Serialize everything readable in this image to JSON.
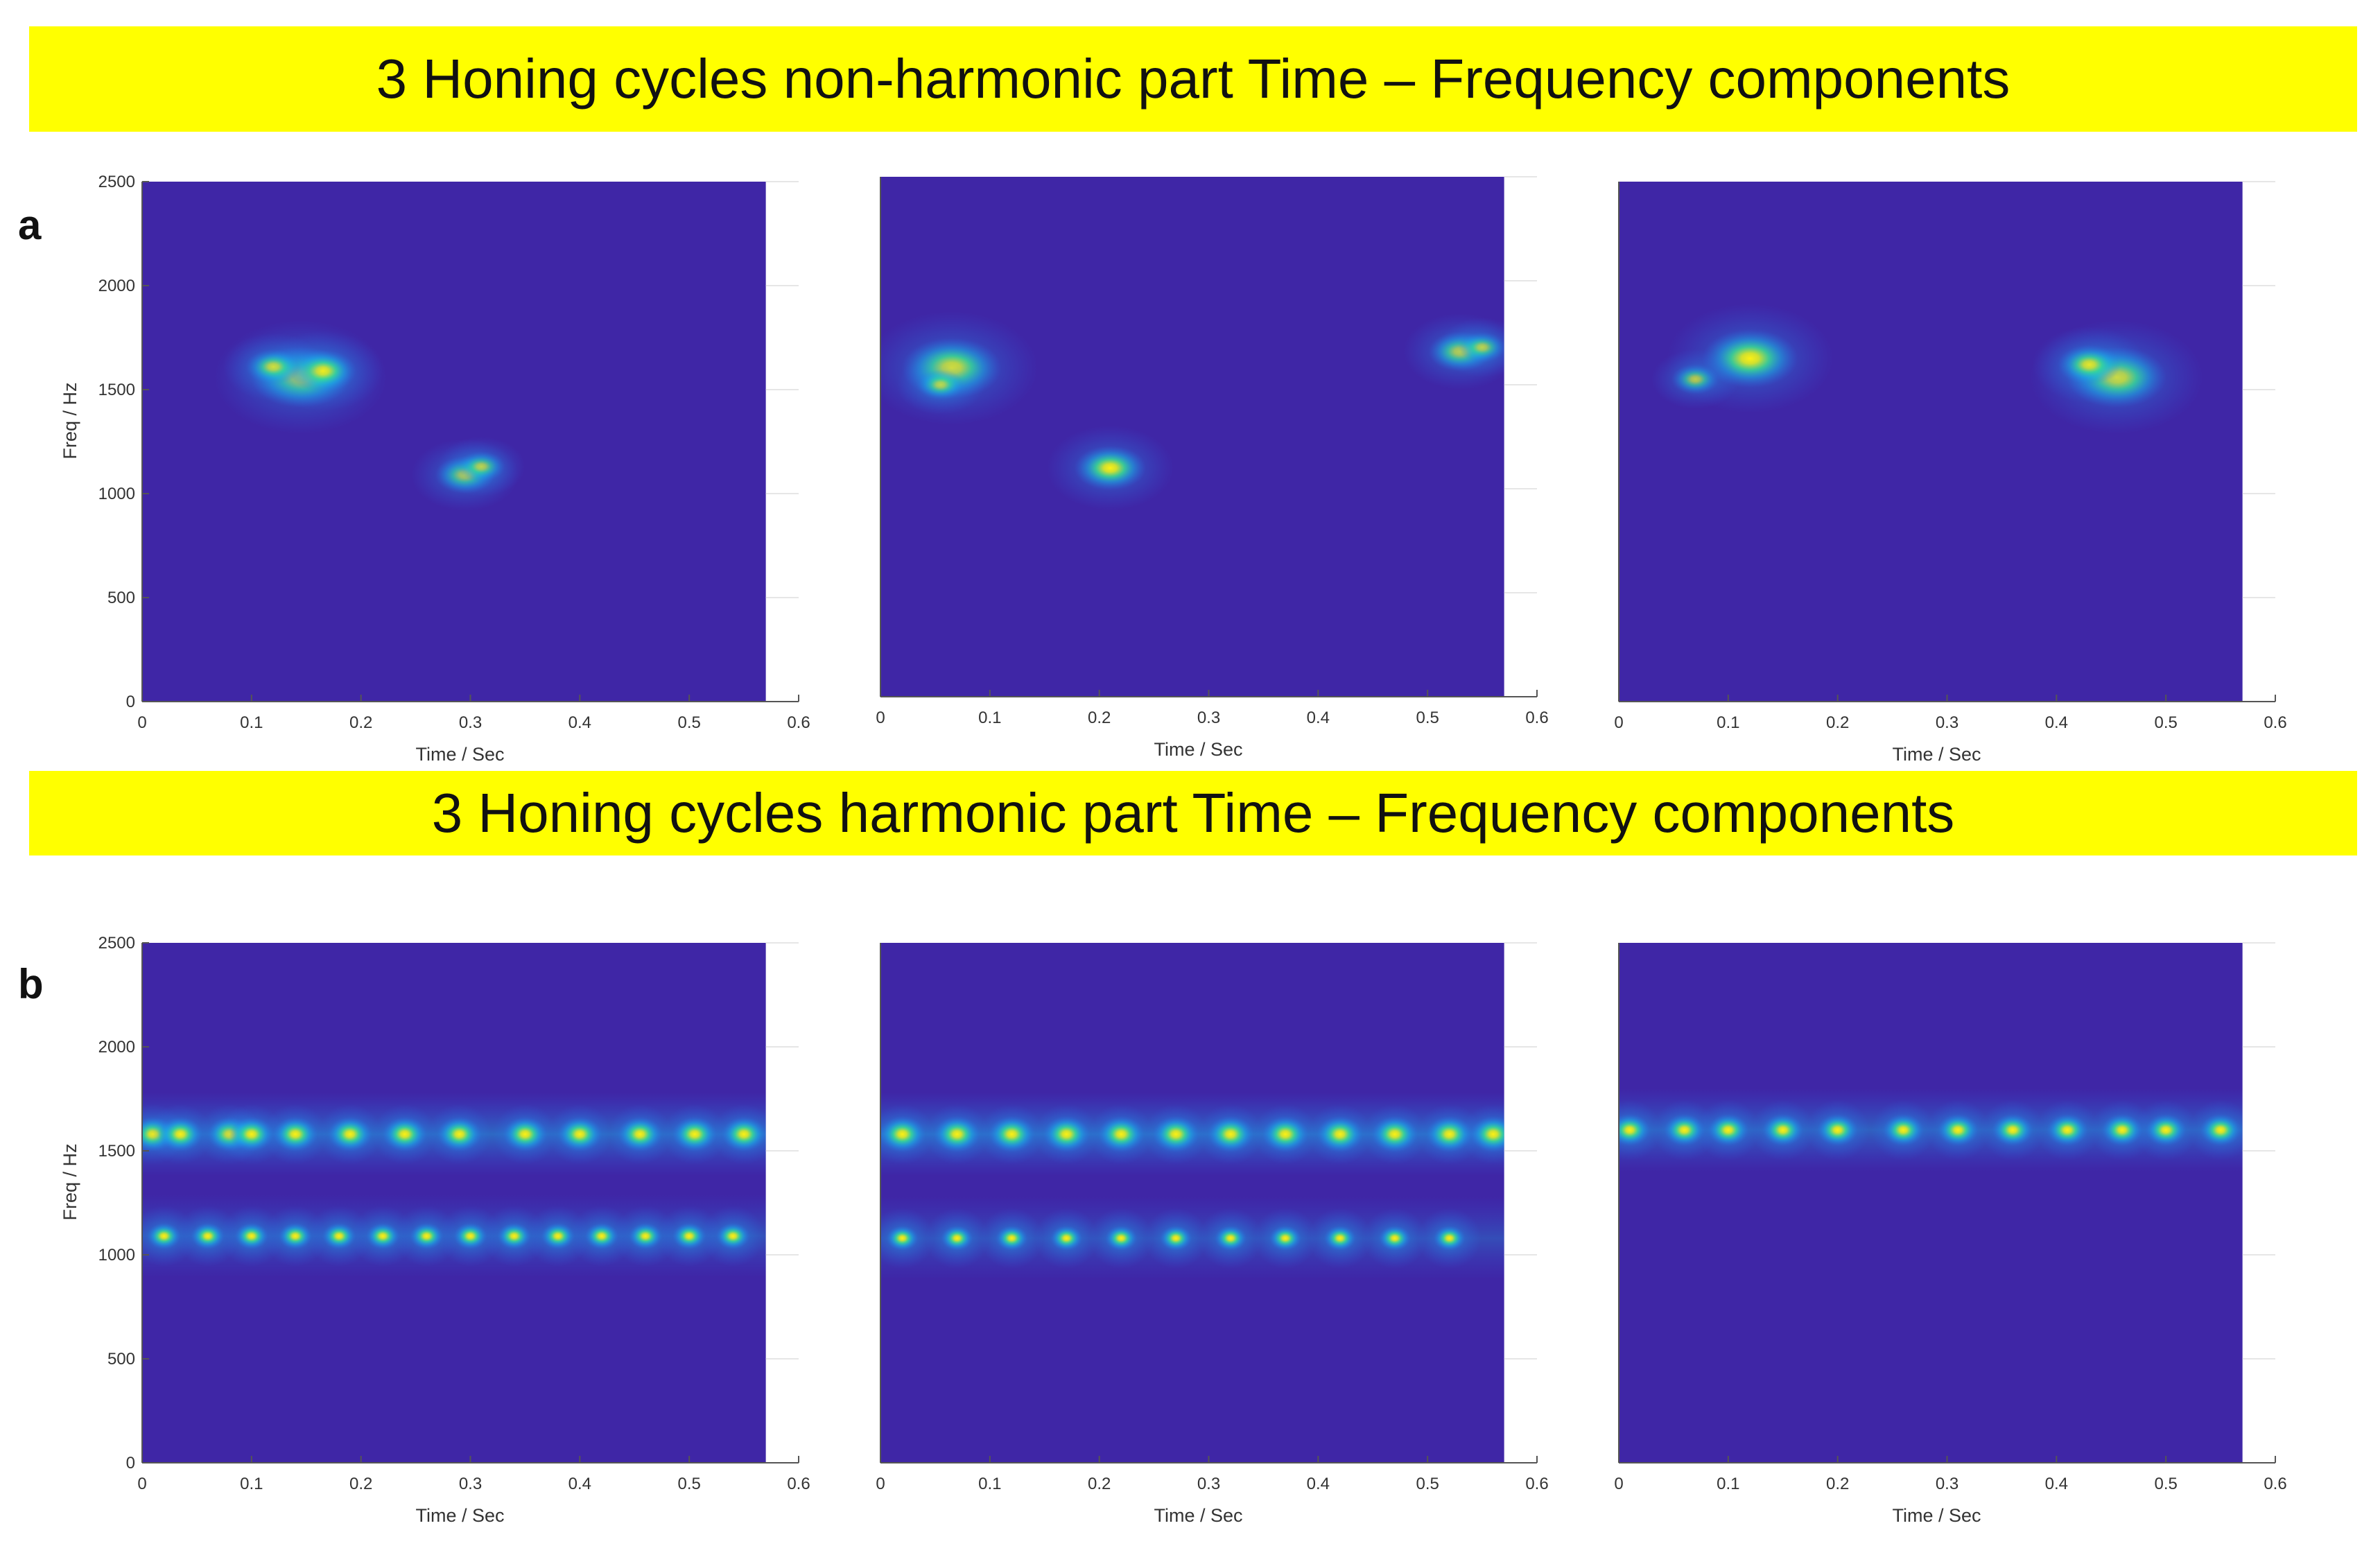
{
  "banners": {
    "non_harmonic": "3 Honing cycles non-harmonic part Time – Frequency components",
    "harmonic": "3 Honing cycles harmonic part Time – Frequency components"
  },
  "panel_labels": {
    "a": "a",
    "b": "b"
  },
  "colors": {
    "banner": "#ffff00",
    "background": "#3f26a6",
    "colormap": [
      "#3f26a6",
      "#2a6ff0",
      "#19b5e6",
      "#3be08f",
      "#d9e627",
      "#fcf014"
    ]
  },
  "chart_data": [
    {
      "type": "heatmap",
      "row": "a",
      "cycle": 1,
      "title": "",
      "xlabel": "Time / Sec",
      "ylabel": "Freq / Hz",
      "xlim": [
        0,
        0.6
      ],
      "ylim": [
        0,
        2500
      ],
      "data_xmax": 0.57,
      "xticks": [
        "0",
        "0.1",
        "0.2",
        "0.3",
        "0.4",
        "0.5",
        "0.6"
      ],
      "yticks": [
        "0",
        "500",
        "1000",
        "1500",
        "2000",
        "2500"
      ],
      "blobs": [
        {
          "t": 0.145,
          "f": 1560,
          "intensity": 1.0
        },
        {
          "t": 0.165,
          "f": 1590,
          "intensity": 0.6
        },
        {
          "t": 0.12,
          "f": 1610,
          "intensity": 0.45
        },
        {
          "t": 0.295,
          "f": 1090,
          "intensity": 0.5
        },
        {
          "t": 0.31,
          "f": 1130,
          "intensity": 0.35
        }
      ]
    },
    {
      "type": "heatmap",
      "row": "a",
      "cycle": 2,
      "title": "",
      "xlabel": "Time / Sec",
      "ylabel": "",
      "xlim": [
        0,
        0.6
      ],
      "ylim": [
        0,
        2500
      ],
      "data_xmax": 0.57,
      "xticks": [
        "0",
        "0.1",
        "0.2",
        "0.3",
        "0.4",
        "0.5",
        "0.6"
      ],
      "yticks": [],
      "blobs": [
        {
          "t": 0.065,
          "f": 1580,
          "intensity": 1.0
        },
        {
          "t": 0.055,
          "f": 1500,
          "intensity": 0.35
        },
        {
          "t": 0.21,
          "f": 1100,
          "intensity": 0.65
        },
        {
          "t": 0.53,
          "f": 1660,
          "intensity": 0.55
        },
        {
          "t": 0.55,
          "f": 1680,
          "intensity": 0.35
        }
      ]
    },
    {
      "type": "heatmap",
      "row": "a",
      "cycle": 3,
      "title": "",
      "xlabel": "Time / Sec",
      "ylabel": "",
      "xlim": [
        0,
        0.6
      ],
      "ylim": [
        0,
        2500
      ],
      "data_xmax": 0.57,
      "xticks": [
        "0",
        "0.1",
        "0.2",
        "0.3",
        "0.4",
        "0.5",
        "0.6"
      ],
      "yticks": [],
      "blobs": [
        {
          "t": 0.12,
          "f": 1650,
          "intensity": 0.95
        },
        {
          "t": 0.07,
          "f": 1550,
          "intensity": 0.35
        },
        {
          "t": 0.455,
          "f": 1560,
          "intensity": 1.0
        },
        {
          "t": 0.43,
          "f": 1620,
          "intensity": 0.55
        }
      ]
    },
    {
      "type": "heatmap",
      "row": "b",
      "cycle": 1,
      "title": "",
      "xlabel": "Time / Sec",
      "ylabel": "Freq / Hz",
      "xlim": [
        0,
        0.6
      ],
      "ylim": [
        0,
        2500
      ],
      "data_xmax": 0.57,
      "xticks": [
        "0",
        "0.1",
        "0.2",
        "0.3",
        "0.4",
        "0.5",
        "0.6"
      ],
      "yticks": [
        "0",
        "500",
        "1000",
        "1500",
        "2000",
        "2500"
      ],
      "bands": [
        {
          "f": 1580,
          "times": [
            0.01,
            0.035,
            0.08,
            0.1,
            0.14,
            0.19,
            0.24,
            0.29,
            0.35,
            0.4,
            0.455,
            0.505,
            0.55
          ],
          "intensity": 0.85
        },
        {
          "f": 1090,
          "times": [
            0.02,
            0.06,
            0.1,
            0.14,
            0.18,
            0.22,
            0.26,
            0.3,
            0.34,
            0.38,
            0.42,
            0.46,
            0.5,
            0.54
          ],
          "intensity": 0.55
        }
      ]
    },
    {
      "type": "heatmap",
      "row": "b",
      "cycle": 2,
      "title": "",
      "xlabel": "Time / Sec",
      "ylabel": "",
      "xlim": [
        0,
        0.6
      ],
      "ylim": [
        0,
        2500
      ],
      "data_xmax": 0.57,
      "xticks": [
        "0",
        "0.1",
        "0.2",
        "0.3",
        "0.4",
        "0.5",
        "0.6"
      ],
      "yticks": [],
      "bands": [
        {
          "f": 1580,
          "times": [
            0.02,
            0.07,
            0.12,
            0.17,
            0.22,
            0.27,
            0.32,
            0.37,
            0.42,
            0.47,
            0.52,
            0.56
          ],
          "intensity": 0.9
        },
        {
          "f": 1080,
          "times": [
            0.02,
            0.07,
            0.12,
            0.17,
            0.22,
            0.27,
            0.32,
            0.37,
            0.42,
            0.47,
            0.52
          ],
          "intensity": 0.5
        }
      ]
    },
    {
      "type": "heatmap",
      "row": "b",
      "cycle": 3,
      "title": "",
      "xlabel": "Time / Sec",
      "ylabel": "",
      "xlim": [
        0,
        0.6
      ],
      "ylim": [
        0,
        2500
      ],
      "data_xmax": 0.57,
      "xticks": [
        "0",
        "0.1",
        "0.2",
        "0.3",
        "0.4",
        "0.5",
        "0.6"
      ],
      "yticks": [],
      "bands": [
        {
          "f": 1600,
          "times": [
            0.01,
            0.06,
            0.1,
            0.15,
            0.2,
            0.26,
            0.31,
            0.36,
            0.41,
            0.46,
            0.5,
            0.55
          ],
          "intensity": 0.75
        }
      ]
    }
  ]
}
